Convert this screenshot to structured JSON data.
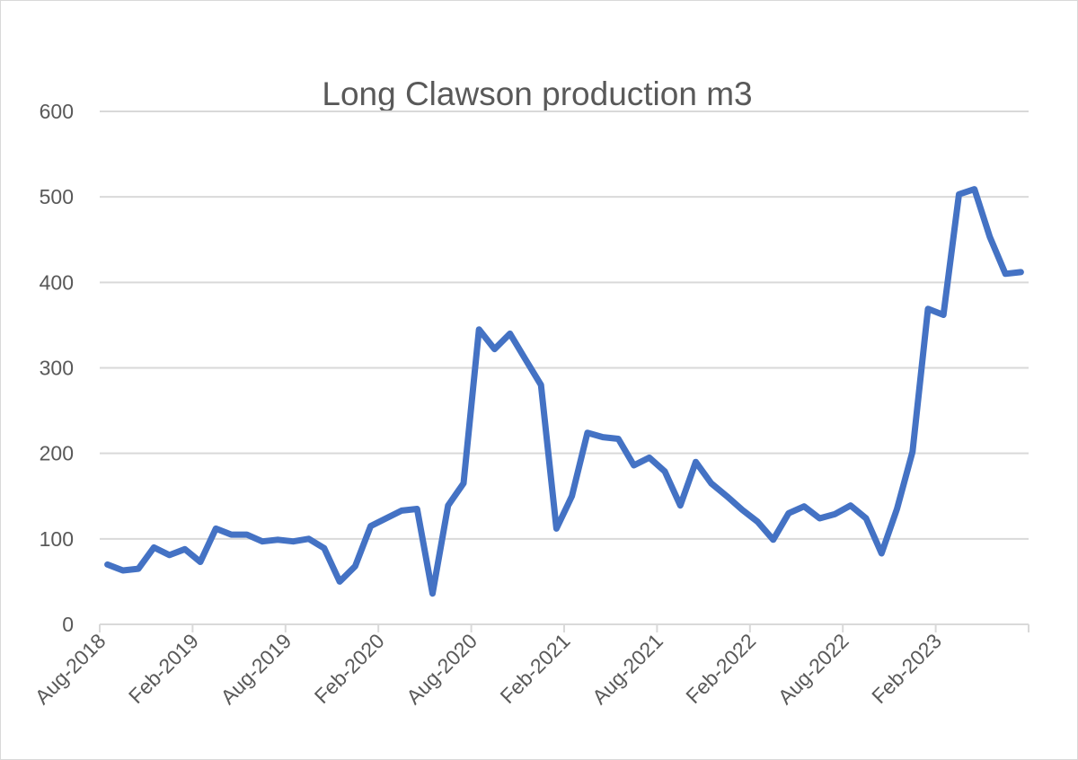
{
  "chart_data": {
    "type": "line",
    "title": "Long Clawson production m3",
    "xlabel": "",
    "ylabel": "",
    "ylim": [
      0,
      600
    ],
    "yticks": [
      "0",
      "100",
      "200",
      "300",
      "400",
      "500",
      "600"
    ],
    "grid": true,
    "legend": "none",
    "x_tick_labels": [
      "Aug-2018",
      "Feb-2019",
      "Aug-2019",
      "Feb-2020",
      "Aug-2020",
      "Feb-2021",
      "Aug-2021",
      "Feb-2022",
      "Aug-2022",
      "Feb-2023"
    ],
    "x_tick_every": 6,
    "x": [
      "Aug-2018",
      "Sep-2018",
      "Oct-2018",
      "Nov-2018",
      "Dec-2018",
      "Jan-2019",
      "Feb-2019",
      "Mar-2019",
      "Apr-2019",
      "May-2019",
      "Jun-2019",
      "Jul-2019",
      "Aug-2019",
      "Sep-2019",
      "Oct-2019",
      "Nov-2019",
      "Dec-2019",
      "Jan-2020",
      "Feb-2020",
      "Mar-2020",
      "Apr-2020",
      "May-2020",
      "Jun-2020",
      "Jul-2020",
      "Aug-2020",
      "Sep-2020",
      "Oct-2020",
      "Nov-2020",
      "Dec-2020",
      "Jan-2021",
      "Feb-2021",
      "Mar-2021",
      "Apr-2021",
      "May-2021",
      "Jun-2021",
      "Jul-2021",
      "Aug-2021",
      "Sep-2021",
      "Oct-2021",
      "Nov-2021",
      "Dec-2021",
      "Jan-2022",
      "Feb-2022",
      "Mar-2022",
      "Apr-2022",
      "May-2022",
      "Jun-2022",
      "Jul-2022",
      "Aug-2022",
      "Sep-2022",
      "Oct-2022",
      "Nov-2022",
      "Dec-2022",
      "Jan-2023",
      "Feb-2023",
      "Mar-2023",
      "Apr-2023",
      "May-2023",
      "Jun-2023",
      "Jul-2023"
    ],
    "series": [
      {
        "name": "Long Clawson production m3",
        "color": "#4472C4",
        "values": [
          70,
          63,
          65,
          90,
          81,
          88,
          73,
          112,
          105,
          105,
          97,
          99,
          97,
          100,
          89,
          50,
          68,
          115,
          124,
          133,
          135,
          36,
          139,
          165,
          345,
          322,
          340,
          310,
          280,
          112,
          150,
          224,
          219,
          217,
          186,
          195,
          179,
          139,
          190,
          165,
          150,
          134,
          120,
          99,
          130,
          138,
          124,
          129,
          139,
          124,
          83,
          135,
          202,
          369,
          362,
          503,
          509,
          453,
          410,
          412
        ]
      }
    ]
  }
}
